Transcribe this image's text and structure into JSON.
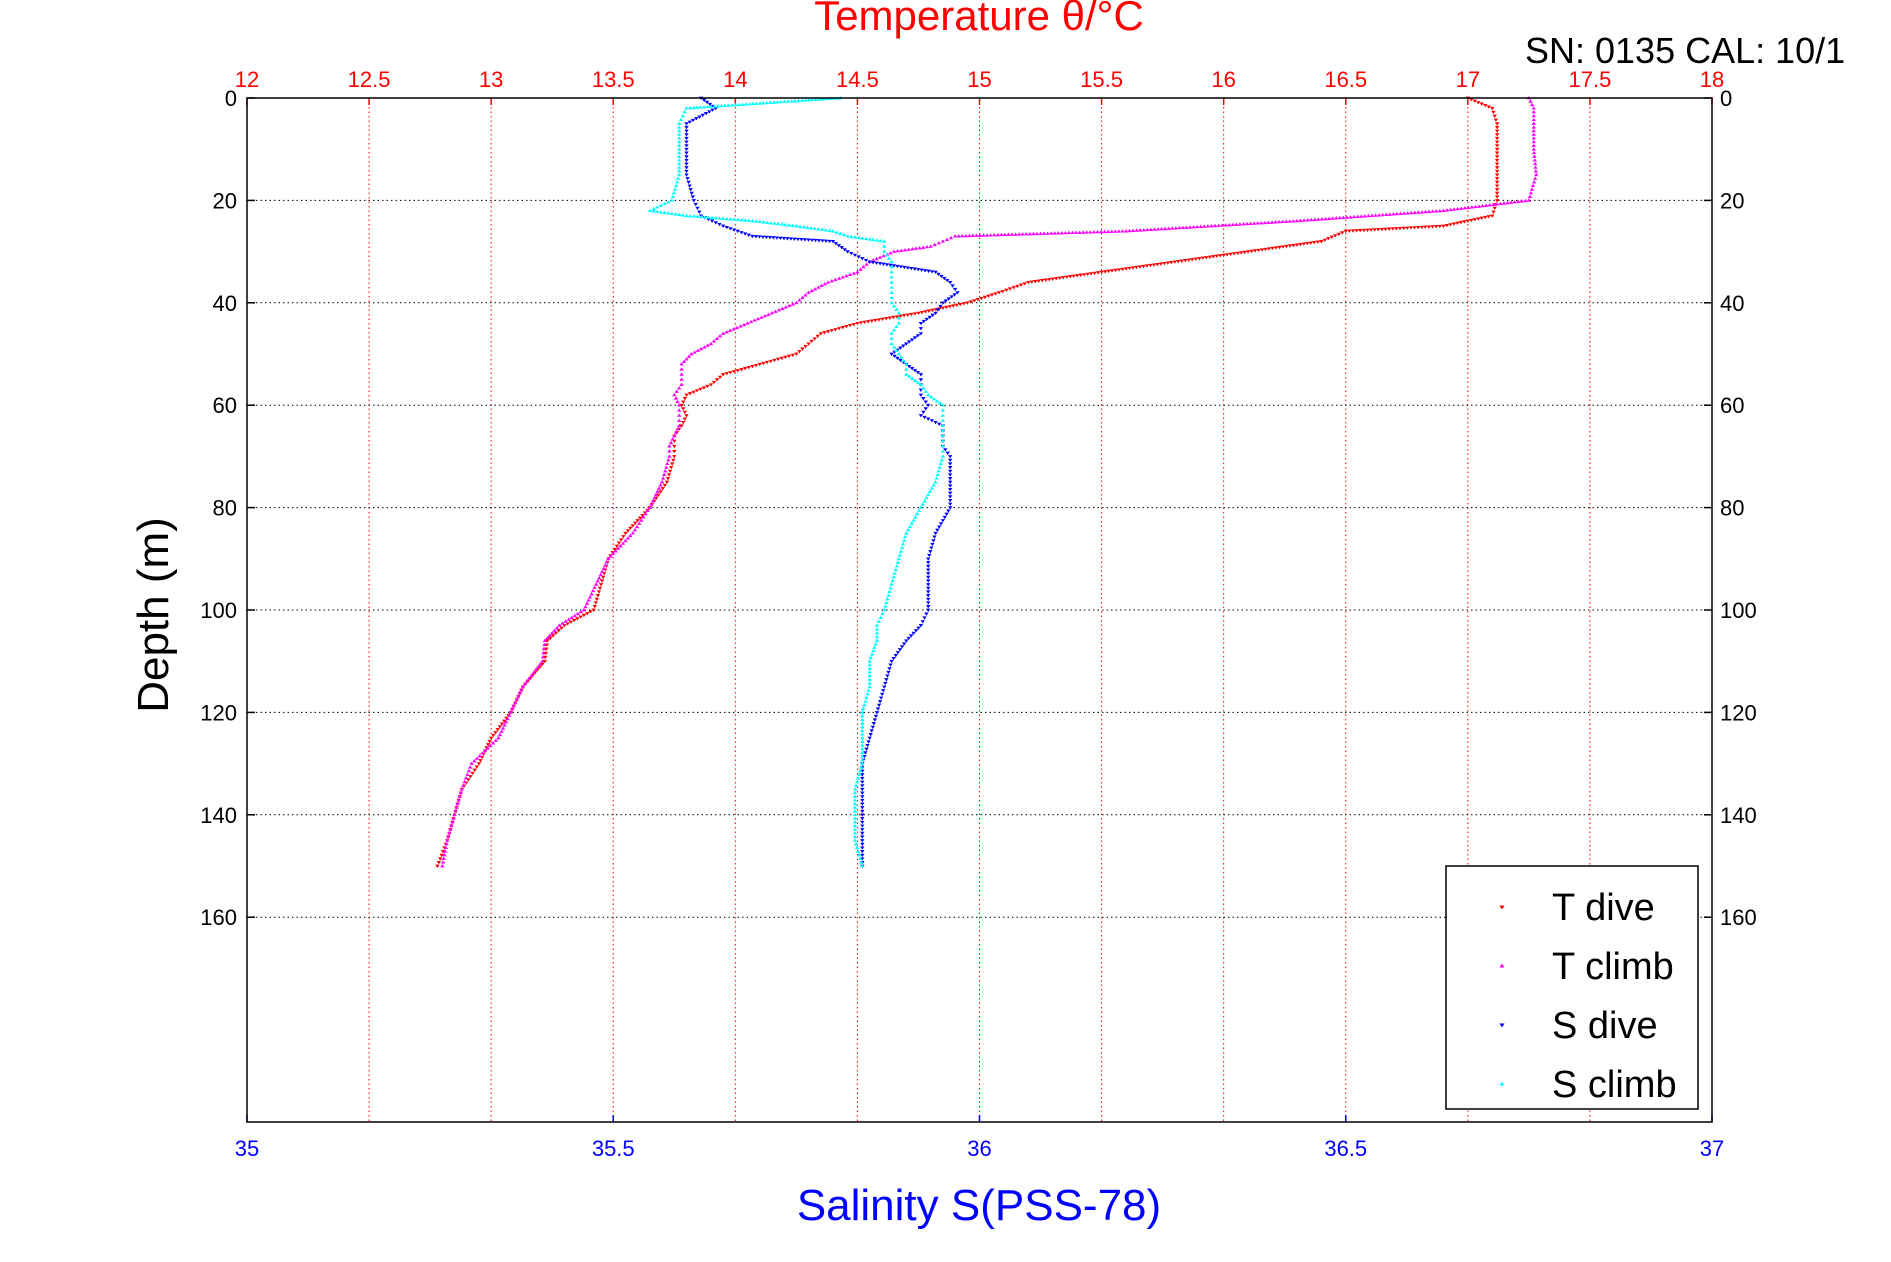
{
  "chart_data": {
    "type": "scatter",
    "title": "Temperature θ/°C",
    "annotation": "SN: 0135  CAL: 10/1",
    "xlabel": "Salinity S(PSS-78)",
    "ylabel": "Depth (m)",
    "temperature_axis": {
      "position": "top",
      "range": [
        12,
        18
      ],
      "ticks": [
        12,
        12.5,
        13,
        13.5,
        14,
        14.5,
        15,
        15.5,
        16,
        16.5,
        17,
        17.5,
        18
      ],
      "tick_labels": [
        "12",
        "12.5",
        "13",
        "13.5",
        "14",
        "14.5",
        "15",
        "15.5",
        "16",
        "16.5",
        "17",
        "17.5",
        "18"
      ],
      "color": "#ff0000"
    },
    "salinity_axis": {
      "position": "bottom",
      "range": [
        35,
        37
      ],
      "ticks": [
        35,
        35.5,
        36,
        36.5,
        37
      ],
      "tick_labels": [
        "35",
        "35.5",
        "36",
        "36.5",
        "37"
      ],
      "color": "#0000ff"
    },
    "depth_axis": {
      "range": [
        0,
        200
      ],
      "reversed": true,
      "ticks": [
        0,
        20,
        40,
        60,
        80,
        100,
        120,
        140,
        160
      ],
      "tick_labels": [
        "0",
        "20",
        "40",
        "60",
        "80",
        "100",
        "120",
        "140",
        "160"
      ]
    },
    "grid": true,
    "legend_position": "bottom-right",
    "series": [
      {
        "name": "T dive",
        "axis": "temperature",
        "color": "#ff0000",
        "marker": "triangle-down",
        "depth": [
          0,
          2,
          5,
          10,
          15,
          20,
          23,
          25,
          26,
          28,
          30,
          32,
          34,
          36,
          38,
          40,
          42,
          44,
          46,
          48,
          50,
          52,
          54,
          56,
          58,
          60,
          62,
          64,
          66,
          68,
          70,
          75,
          80,
          85,
          90,
          95,
          100,
          103,
          106,
          110,
          115,
          120,
          125,
          130,
          135,
          140,
          145,
          150
        ],
        "values": [
          17.0,
          17.1,
          17.12,
          17.12,
          17.12,
          17.12,
          17.1,
          16.9,
          16.5,
          16.4,
          16.1,
          15.8,
          15.5,
          15.2,
          15.08,
          14.95,
          14.75,
          14.5,
          14.35,
          14.3,
          14.25,
          14.1,
          13.95,
          13.9,
          13.8,
          13.78,
          13.8,
          13.78,
          13.75,
          13.75,
          13.75,
          13.72,
          13.65,
          13.55,
          13.48,
          13.45,
          13.42,
          13.3,
          13.23,
          13.22,
          13.13,
          13.08,
          13.0,
          12.95,
          12.88,
          12.85,
          12.82,
          12.78
        ]
      },
      {
        "name": "T climb",
        "axis": "temperature",
        "color": "#ff00ff",
        "marker": "triangle-up",
        "depth": [
          0,
          2,
          5,
          10,
          15,
          20,
          22,
          24,
          26,
          27,
          28,
          29,
          30,
          32,
          34,
          36,
          38,
          40,
          42,
          44,
          46,
          48,
          50,
          52,
          54,
          56,
          58,
          60,
          62,
          64,
          66,
          68,
          70,
          75,
          80,
          85,
          90,
          95,
          100,
          103,
          106,
          110,
          115,
          120,
          125,
          130,
          135,
          140,
          145,
          150
        ],
        "values": [
          17.25,
          17.27,
          17.27,
          17.27,
          17.28,
          17.25,
          16.9,
          16.3,
          15.6,
          14.9,
          14.85,
          14.8,
          14.65,
          14.55,
          14.5,
          14.38,
          14.3,
          14.25,
          14.15,
          14.05,
          13.95,
          13.9,
          13.82,
          13.78,
          13.78,
          13.78,
          13.75,
          13.77,
          13.77,
          13.77,
          13.75,
          13.73,
          13.73,
          13.7,
          13.65,
          13.58,
          13.48,
          13.43,
          13.38,
          13.28,
          13.22,
          13.21,
          13.13,
          13.08,
          13.03,
          12.92,
          12.88,
          12.85,
          12.82,
          12.8
        ]
      },
      {
        "name": "S dive",
        "axis": "salinity",
        "color": "#0000ff",
        "marker": "triangle-down",
        "depth": [
          0,
          2,
          5,
          10,
          15,
          20,
          23,
          25,
          27,
          28,
          30,
          32,
          34,
          36,
          38,
          40,
          42,
          44,
          46,
          48,
          50,
          52,
          54,
          56,
          58,
          60,
          62,
          64,
          66,
          68,
          70,
          75,
          80,
          85,
          90,
          95,
          100,
          103,
          106,
          110,
          115,
          120,
          125,
          130,
          135,
          140,
          145,
          150
        ],
        "values": [
          35.62,
          35.64,
          35.6,
          35.6,
          35.6,
          35.61,
          35.62,
          35.65,
          35.69,
          35.8,
          35.82,
          35.85,
          35.94,
          35.96,
          35.97,
          35.95,
          35.94,
          35.92,
          35.92,
          35.9,
          35.88,
          35.9,
          35.92,
          35.92,
          35.92,
          35.93,
          35.92,
          35.95,
          35.95,
          35.95,
          35.96,
          35.96,
          35.96,
          35.94,
          35.93,
          35.93,
          35.93,
          35.92,
          35.9,
          35.88,
          35.87,
          35.86,
          35.85,
          35.84,
          35.84,
          35.84,
          35.84,
          35.84
        ]
      },
      {
        "name": "S climb",
        "axis": "salinity",
        "color": "#00ffff",
        "marker": "triangle-up",
        "depth": [
          0,
          2,
          5,
          10,
          15,
          20,
          22,
          23,
          24,
          25,
          26,
          27,
          28,
          30,
          32,
          34,
          36,
          38,
          40,
          42,
          44,
          46,
          48,
          50,
          52,
          54,
          56,
          58,
          60,
          62,
          64,
          66,
          68,
          70,
          75,
          80,
          85,
          90,
          95,
          100,
          103,
          106,
          110,
          115,
          120,
          125,
          130,
          135,
          140,
          145,
          150
        ],
        "values": [
          35.81,
          35.6,
          35.59,
          35.59,
          35.59,
          35.58,
          35.55,
          35.6,
          35.69,
          35.75,
          35.8,
          35.82,
          35.87,
          35.87,
          35.88,
          35.88,
          35.88,
          35.88,
          35.88,
          35.89,
          35.89,
          35.88,
          35.88,
          35.89,
          35.9,
          35.9,
          35.92,
          35.93,
          35.95,
          35.95,
          35.95,
          35.95,
          35.95,
          35.95,
          35.94,
          35.92,
          35.9,
          35.89,
          35.88,
          35.87,
          35.86,
          35.86,
          35.85,
          35.85,
          35.84,
          35.84,
          35.84,
          35.83,
          35.83,
          35.83,
          35.84
        ]
      }
    ]
  }
}
